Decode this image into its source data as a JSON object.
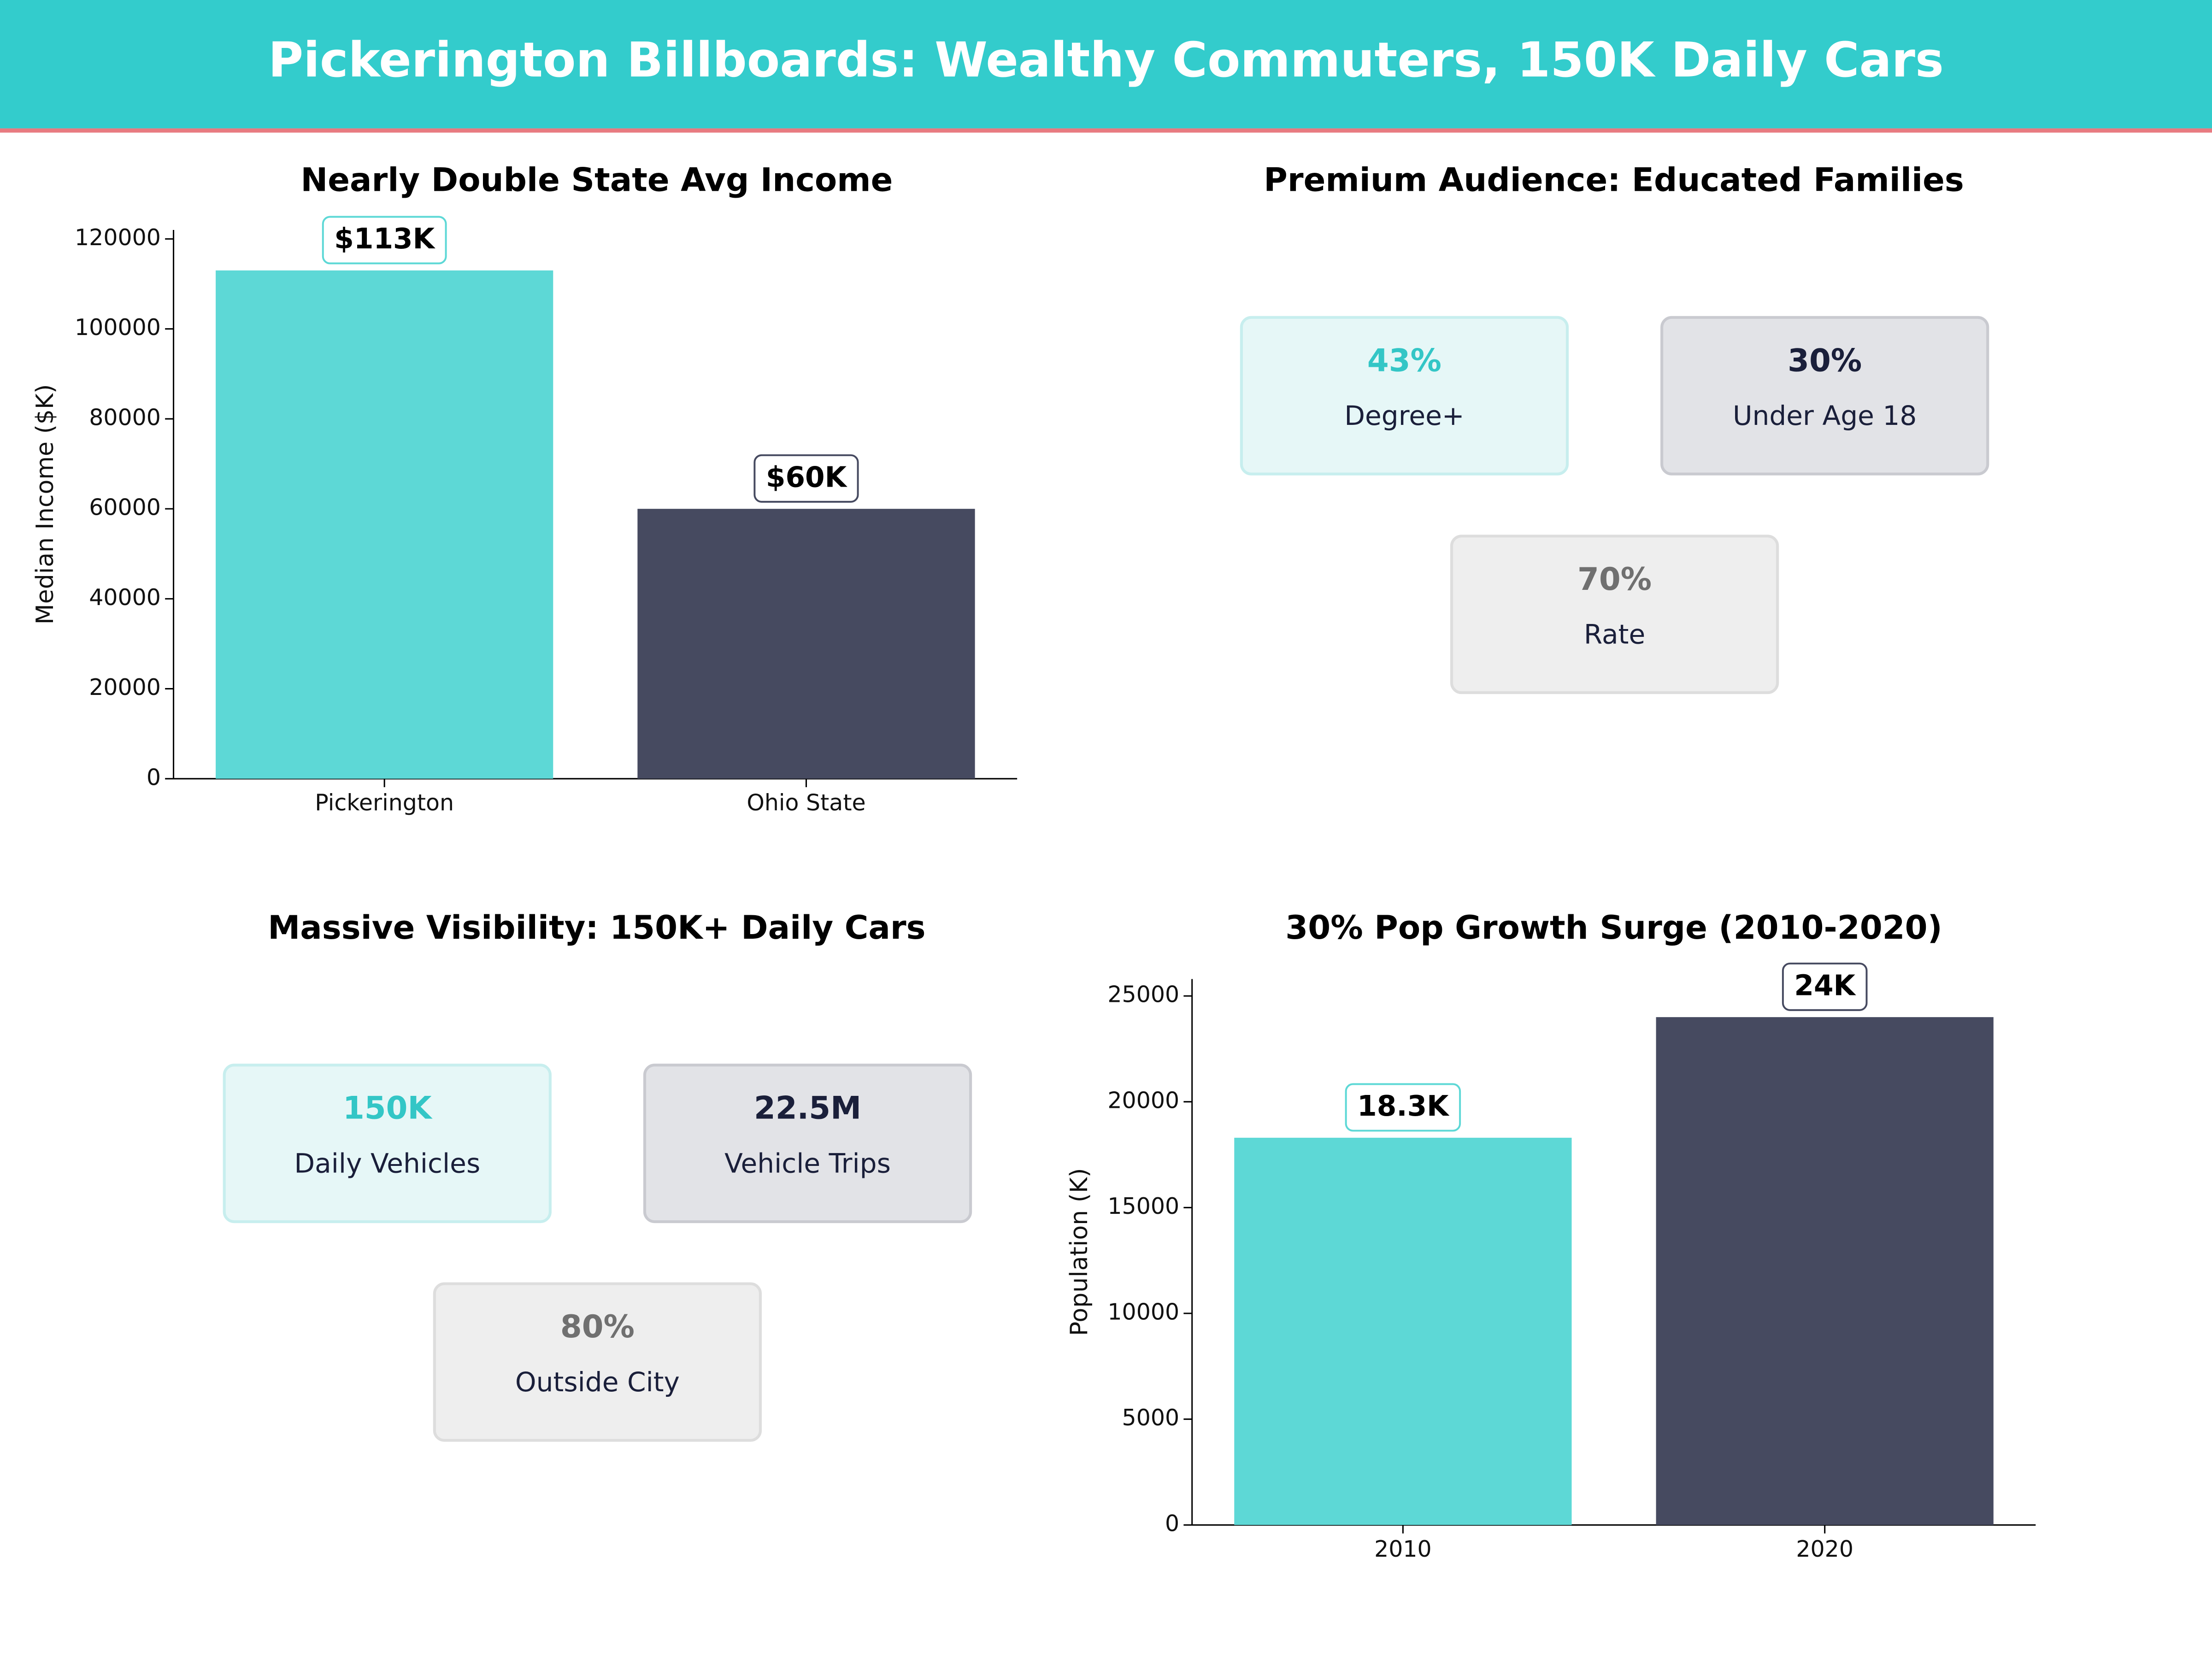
{
  "header": {
    "title": "Pickerington Billboards: Wealthy Commuters, 150K Daily Cars"
  },
  "chart_data": [
    {
      "type": "bar",
      "title": "Nearly Double State Avg Income",
      "ylabel": "Median Income ($K)",
      "categories": [
        "Pickerington",
        "Ohio State"
      ],
      "values": [
        113000,
        60000
      ],
      "value_labels": [
        "$113K",
        "$60K"
      ],
      "colors": [
        "#5dd8d6",
        "#464a60"
      ],
      "ylim": [
        0,
        122000
      ],
      "yticks": [
        0,
        20000,
        40000,
        60000,
        80000,
        100000,
        120000
      ]
    },
    {
      "type": "stats",
      "title": "Premium Audience: Educated Families",
      "cards": [
        {
          "value": "43%",
          "label": "Degree+"
        },
        {
          "value": "30%",
          "label": "Under Age 18"
        },
        {
          "value": "70%",
          "label": "Rate"
        }
      ]
    },
    {
      "type": "stats",
      "title": "Massive Visibility: 150K+ Daily Cars",
      "cards": [
        {
          "value": "150K",
          "label": "Daily Vehicles"
        },
        {
          "value": "22.5M",
          "label": "Vehicle Trips"
        },
        {
          "value": "80%",
          "label": "Outside City"
        }
      ]
    },
    {
      "type": "bar",
      "title": "30% Pop Growth Surge (2010-2020)",
      "ylabel": "Population (K)",
      "categories": [
        "2010",
        "2020"
      ],
      "values": [
        18300,
        24000
      ],
      "value_labels": [
        "18.3K",
        "24K"
      ],
      "colors": [
        "#5dd8d6",
        "#464a60"
      ],
      "ylim": [
        0,
        25800
      ],
      "yticks": [
        0,
        5000,
        10000,
        15000,
        20000,
        25000
      ]
    }
  ]
}
